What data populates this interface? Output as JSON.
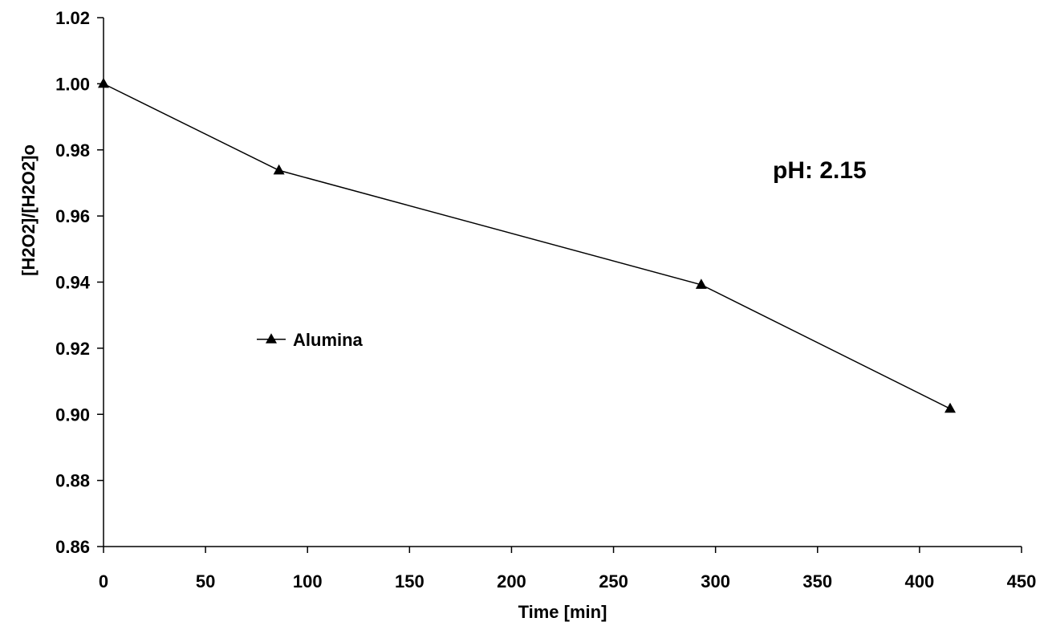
{
  "chart_data": {
    "type": "line",
    "title": "",
    "xlabel": "Time [min]",
    "ylabel": "[H2O2]/[H2O2]o",
    "xlim": [
      0,
      450
    ],
    "ylim": [
      0.86,
      1.02
    ],
    "xticks": [
      0,
      50,
      100,
      150,
      200,
      250,
      300,
      350,
      400,
      450
    ],
    "yticks": [
      0.86,
      0.88,
      0.9,
      0.92,
      0.94,
      0.96,
      0.98,
      1.0,
      1.02
    ],
    "x_tick_labels": [
      "0",
      "50",
      "100",
      "150",
      "200",
      "250",
      "300",
      "350",
      "400",
      "450"
    ],
    "y_tick_labels": [
      "0.86",
      "0.88",
      "0.90",
      "0.92",
      "0.94",
      "0.96",
      "0.98",
      "1.00",
      "1.02"
    ],
    "grid": false,
    "legend_position": "left-middle",
    "series": [
      {
        "name": "Alumina",
        "marker": "triangle",
        "color": "#000000",
        "x": [
          0,
          86,
          293,
          415
        ],
        "y": [
          1.0,
          0.9738,
          0.9392,
          0.9017
        ]
      }
    ],
    "annotations": [
      {
        "text": "pH: 2.15"
      }
    ]
  }
}
